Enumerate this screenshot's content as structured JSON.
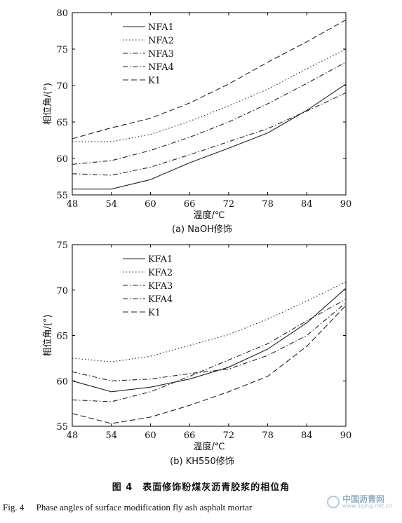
{
  "chart_data": [
    {
      "type": "line",
      "subtitle": "(a) NaOH修饰",
      "xlabel": "温度/℃",
      "ylabel": "相位角/(°)",
      "x": [
        48,
        54,
        60,
        66,
        72,
        78,
        84,
        90
      ],
      "xticks": [
        "48",
        "54",
        "60",
        "66",
        "72",
        "78",
        "84",
        "90"
      ],
      "yticks": [
        "55",
        "60",
        "65",
        "70",
        "75",
        "80"
      ],
      "xlim": [
        48,
        90
      ],
      "ylim": [
        55,
        80
      ],
      "grid": false,
      "legend_position": "top-left",
      "series": [
        {
          "name": "NFA1",
          "style": "solid",
          "values": [
            55.8,
            55.8,
            57.1,
            59.4,
            61.4,
            63.5,
            66.6,
            70.2
          ]
        },
        {
          "name": "NFA2",
          "style": "dotted",
          "values": [
            62.3,
            62.3,
            63.3,
            65.1,
            67.2,
            69.5,
            72.3,
            75.0
          ]
        },
        {
          "name": "NFA3",
          "style": "dashdot",
          "values": [
            59.2,
            59.7,
            61.1,
            62.9,
            65.0,
            67.5,
            70.3,
            73.2
          ]
        },
        {
          "name": "NFA4",
          "style": "dashdot",
          "values": [
            57.9,
            57.7,
            58.8,
            60.5,
            62.3,
            64.1,
            66.5,
            69.0
          ]
        },
        {
          "name": "K1",
          "style": "dashed",
          "values": [
            62.7,
            64.2,
            65.5,
            67.6,
            70.2,
            73.2,
            76.0,
            79.0
          ]
        }
      ]
    },
    {
      "type": "line",
      "subtitle": "(b) KH550修饰",
      "xlabel": "温度/℃",
      "ylabel": "相位角/(°)",
      "x": [
        48,
        54,
        60,
        66,
        72,
        78,
        84,
        90
      ],
      "xticks": [
        "48",
        "54",
        "60",
        "66",
        "72",
        "78",
        "84",
        "90"
      ],
      "yticks": [
        "55",
        "60",
        "65",
        "70",
        "75"
      ],
      "xlim": [
        48,
        90
      ],
      "ylim": [
        55,
        75
      ],
      "grid": false,
      "legend_position": "top-left",
      "series": [
        {
          "name": "KFA1",
          "style": "solid",
          "values": [
            60.0,
            58.8,
            59.3,
            60.2,
            61.5,
            63.5,
            66.4,
            70.2
          ]
        },
        {
          "name": "KFA2",
          "style": "dotted",
          "values": [
            62.5,
            62.1,
            62.7,
            63.9,
            65.1,
            66.8,
            68.8,
            70.9
          ]
        },
        {
          "name": "KFA3",
          "style": "dashdot",
          "values": [
            57.9,
            57.7,
            58.8,
            60.5,
            62.3,
            64.1,
            66.6,
            69.0
          ]
        },
        {
          "name": "KFA4",
          "style": "dashdot",
          "values": [
            61.0,
            60.0,
            60.2,
            60.8,
            61.3,
            62.8,
            65.0,
            68.6
          ]
        },
        {
          "name": "K1",
          "style": "dashed",
          "values": [
            56.4,
            55.3,
            56.0,
            57.3,
            58.8,
            60.5,
            63.8,
            68.3
          ]
        }
      ]
    }
  ],
  "caption": {
    "zh": "图 4　表面修饰粉煤灰沥青胶浆的相位角",
    "en_fig": "Fig. 4",
    "en_text": "Phase angles of surface modification fly ash asphalt mortar"
  },
  "watermark": {
    "cn": "中国沥青网",
    "url": "www.liqing.net.cn",
    "color": "#3c6f96"
  },
  "colors": {
    "line": "#222222",
    "axis": "#000000"
  }
}
